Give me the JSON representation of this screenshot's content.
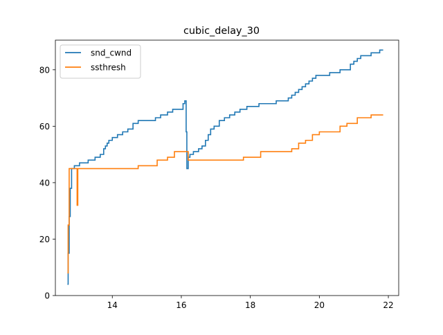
{
  "chart_data": {
    "type": "line",
    "title": "cubic_delay_30",
    "xlabel": "",
    "ylabel": "",
    "xlim": [
      12.35,
      22.3
    ],
    "ylim": [
      0,
      90.5
    ],
    "xticks": [
      14,
      16,
      18,
      20,
      22
    ],
    "yticks": [
      0,
      20,
      40,
      60,
      80
    ],
    "grid": false,
    "legend": "top-left",
    "series": [
      {
        "name": "snd_cwnd",
        "color": "#1f77b4",
        "x": [
          12.7,
          12.72,
          12.72,
          12.75,
          12.75,
          12.78,
          12.78,
          12.82,
          12.85,
          12.9,
          12.95,
          13.05,
          13.2,
          13.3,
          13.5,
          13.65,
          13.75,
          13.8,
          13.85,
          13.9,
          14.0,
          14.15,
          14.3,
          14.45,
          14.6,
          14.75,
          15.0,
          15.25,
          15.3,
          15.4,
          15.6,
          15.65,
          15.75,
          16.05,
          16.1,
          16.12,
          16.14,
          16.16,
          16.16,
          16.2,
          16.25,
          16.35,
          16.5,
          16.55,
          16.6,
          16.7,
          16.78,
          16.85,
          16.95,
          17.1,
          17.25,
          17.4,
          17.55,
          17.7,
          17.9,
          18.1,
          18.25,
          18.5,
          18.75,
          19.0,
          19.1,
          19.2,
          19.3,
          19.4,
          19.5,
          19.6,
          19.7,
          19.8,
          19.9,
          20.0,
          20.3,
          20.6,
          20.8,
          20.9,
          21.0,
          21.1,
          21.2,
          21.4,
          21.5,
          21.65,
          21.75,
          21.85
        ],
        "y": [
          4,
          8,
          15,
          20,
          28,
          32,
          38,
          45,
          45,
          46,
          46,
          47,
          47,
          48,
          49,
          50,
          52,
          53,
          54,
          55,
          56,
          57,
          58,
          59,
          61,
          62,
          62,
          63,
          63,
          64,
          65,
          65,
          66,
          68,
          69,
          69,
          58,
          47,
          45,
          49,
          50,
          51,
          52,
          52,
          53,
          55,
          57,
          59,
          60,
          62,
          63,
          64,
          65,
          66,
          67,
          67,
          68,
          68,
          69,
          69,
          70,
          71,
          72,
          73,
          74,
          75,
          76,
          77,
          78,
          78,
          79,
          80,
          80,
          82,
          83,
          84,
          85,
          85,
          86,
          86,
          87,
          87
        ]
      },
      {
        "name": "ssthresh",
        "color": "#ff7f0e",
        "x": [
          12.7,
          12.72,
          12.75,
          12.77,
          12.8,
          12.97,
          12.98,
          12.99,
          13.0,
          13.01,
          13.05,
          13.5,
          14.0,
          14.5,
          14.75,
          15.0,
          15.3,
          15.5,
          15.6,
          15.8,
          16.0,
          16.15,
          16.2,
          16.5,
          17.0,
          17.5,
          17.8,
          18.0,
          18.3,
          18.5,
          19.0,
          19.2,
          19.4,
          19.6,
          19.8,
          20.0,
          20.3,
          20.5,
          20.6,
          20.8,
          21.0,
          21.1,
          21.3,
          21.5,
          21.7,
          21.85
        ],
        "y": [
          8,
          25,
          45,
          45,
          45,
          45,
          32,
          32,
          45,
          45,
          45,
          45,
          45,
          45,
          46,
          46,
          48,
          48,
          49,
          51,
          51,
          51,
          48,
          48,
          48,
          48,
          49,
          49,
          51,
          51,
          51,
          52,
          54,
          55,
          57,
          58,
          58,
          58,
          60,
          61,
          61,
          63,
          63,
          64,
          64,
          64
        ]
      }
    ]
  }
}
